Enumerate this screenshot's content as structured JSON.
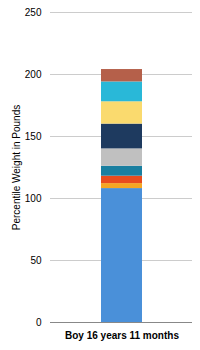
{
  "chart_data": {
    "type": "bar",
    "stacked": true,
    "categories": [
      "Boy 16 years 11 months"
    ],
    "series": [
      {
        "color": "#4A90D9",
        "values": [
          108
        ]
      },
      {
        "color": "#F5A623",
        "values": [
          4
        ]
      },
      {
        "color": "#E84C1E",
        "values": [
          6
        ]
      },
      {
        "color": "#1A7FA0",
        "values": [
          8
        ]
      },
      {
        "color": "#C0C0C0",
        "values": [
          14
        ]
      },
      {
        "color": "#1E3A5F",
        "values": [
          20
        ]
      },
      {
        "color": "#FADA6E",
        "values": [
          18
        ]
      },
      {
        "color": "#29B8D8",
        "values": [
          16
        ]
      },
      {
        "color": "#B5604A",
        "values": [
          10
        ]
      }
    ],
    "ylabel": "Percentile Weight in Pounds",
    "ylim": [
      0,
      250
    ],
    "yticks": [
      0,
      50,
      100,
      150,
      200,
      250
    ],
    "grid": true
  }
}
